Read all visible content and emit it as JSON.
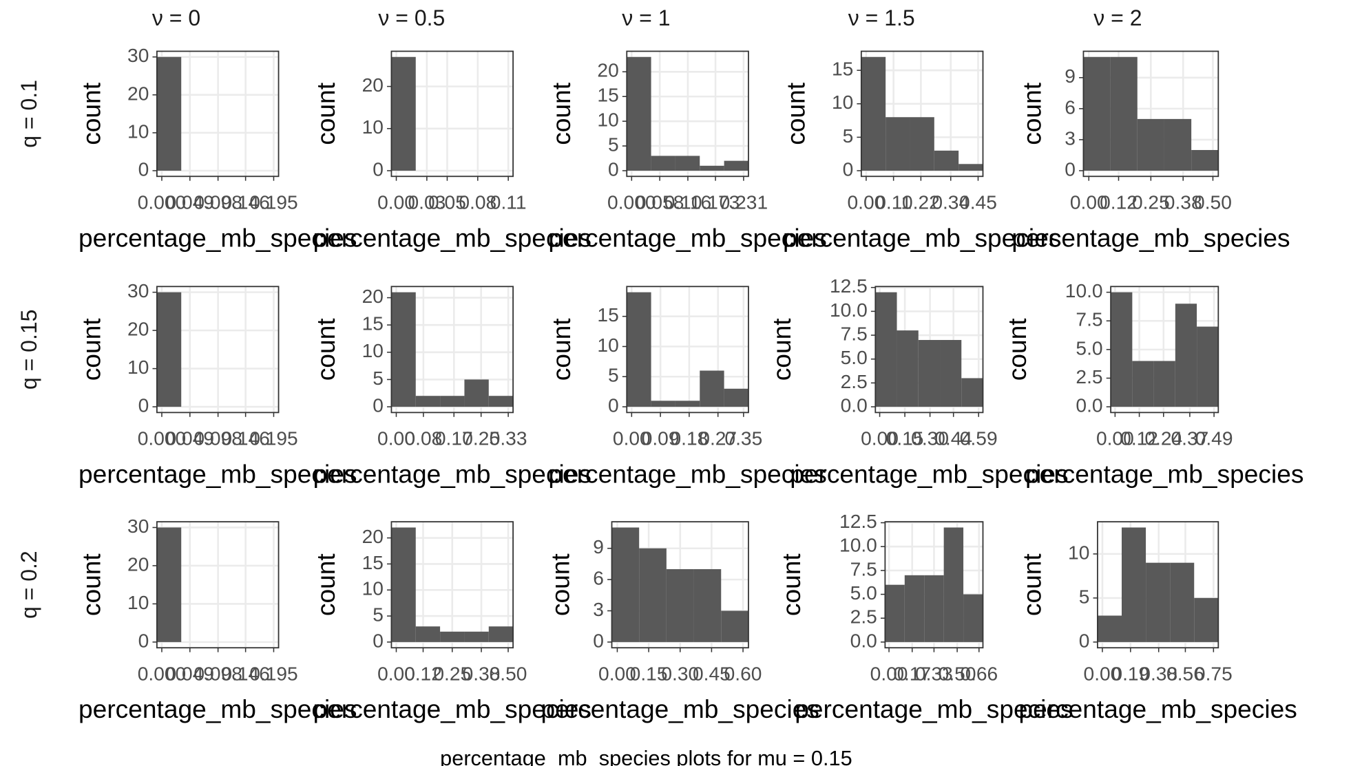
{
  "column_labels": [
    "ν = 0",
    "ν = 0.5",
    "ν = 1",
    "ν = 1.5",
    "ν = 2"
  ],
  "row_labels": [
    "q =  0.1",
    "q =  0.15",
    "q =  0.2"
  ],
  "caption": "percentage_mb_species plots for mu = 0.15",
  "chart_data": [
    {
      "type": "histogram",
      "x_label": "percentage_mb_species",
      "y_label": "count",
      "color": "#595959",
      "grid": true,
      "bins": [
        -0.0085,
        0.0339,
        0.0763,
        0.1187,
        0.1611,
        0.2035
      ],
      "values": [
        30,
        0,
        0,
        0,
        0
      ],
      "xlim": [
        -0.0085,
        0.2035
      ],
      "xticks": [
        {
          "value": 0,
          "label": "0.000"
        },
        0.049,
        0.098,
        0.146,
        0.195
      ],
      "ylim": [
        -1.5,
        31.5
      ],
      "yticks": [
        0,
        10,
        20,
        30
      ]
    },
    {
      "type": "histogram",
      "x_label": "percentage_mb_species",
      "y_label": "count",
      "color": "#595959",
      "grid": true,
      "bins": [
        -0.0048,
        0.0191,
        0.043,
        0.0669,
        0.0908,
        0.1147
      ],
      "values": [
        27,
        0,
        0,
        0,
        0
      ],
      "xlim": [
        -0.0048,
        0.1147
      ],
      "xticks": [
        {
          "value": 0,
          "label": "0.00"
        },
        0.03,
        0.05,
        0.08,
        0.11
      ],
      "ylim": [
        -1.35,
        28.35
      ],
      "yticks": [
        0,
        10,
        20
      ]
    },
    {
      "type": "histogram",
      "x_label": "percentage_mb_species",
      "y_label": "count",
      "color": "#595959",
      "grid": true,
      "bins": [
        -0.01,
        0.0402,
        0.0904,
        0.1406,
        0.1908,
        0.241
      ],
      "values": [
        23,
        3,
        3,
        1,
        2
      ],
      "xlim": [
        -0.01,
        0.241
      ],
      "xticks": [
        {
          "value": 0,
          "label": "0.000"
        },
        0.058,
        0.116,
        0.173,
        0.231
      ],
      "ylim": [
        -1.15,
        24.15
      ],
      "yticks": [
        0,
        5,
        10,
        15,
        20
      ]
    },
    {
      "type": "histogram",
      "x_label": "percentage_mb_species",
      "y_label": "count",
      "color": "#595959",
      "grid": true,
      "bins": [
        -0.0196,
        0.0782,
        0.176,
        0.2738,
        0.3716,
        0.4694
      ],
      "values": [
        17,
        8,
        8,
        3,
        1
      ],
      "xlim": [
        -0.0196,
        0.4694
      ],
      "xticks": [
        {
          "value": 0,
          "label": "0.00"
        },
        0.11,
        0.22,
        0.34,
        0.45
      ],
      "ylim": [
        -0.85,
        17.85
      ],
      "yticks": [
        0,
        5,
        10,
        15
      ]
    },
    {
      "type": "histogram",
      "x_label": "percentage_mb_species",
      "y_label": "count",
      "color": "#595959",
      "grid": true,
      "bins": [
        -0.0217,
        0.087,
        0.1957,
        0.3044,
        0.4131,
        0.5218
      ],
      "values": [
        11,
        11,
        5,
        5,
        2
      ],
      "xlim": [
        -0.0217,
        0.5218
      ],
      "xticks": [
        {
          "value": 0,
          "label": "0.00"
        },
        0.12,
        0.25,
        0.38,
        {
          "value": 0.5,
          "label": "0.50"
        }
      ],
      "ylim": [
        -0.55,
        11.55
      ],
      "yticks": [
        0,
        3,
        6,
        9
      ]
    },
    {
      "type": "histogram",
      "x_label": "percentage_mb_species",
      "y_label": "count",
      "color": "#595959",
      "grid": true,
      "bins": [
        -0.0085,
        0.0339,
        0.0763,
        0.1187,
        0.1611,
        0.2035
      ],
      "values": [
        30,
        0,
        0,
        0,
        0
      ],
      "xlim": [
        -0.0085,
        0.2035
      ],
      "xticks": [
        {
          "value": 0,
          "label": "0.000"
        },
        0.049,
        0.098,
        0.146,
        0.195
      ],
      "ylim": [
        -1.5,
        31.5
      ],
      "yticks": [
        0,
        10,
        20,
        30
      ]
    },
    {
      "type": "histogram",
      "x_label": "percentage_mb_species",
      "y_label": "count",
      "color": "#595959",
      "grid": true,
      "bins": [
        -0.0143,
        0.0574,
        0.1291,
        0.2008,
        0.2725,
        0.3442
      ],
      "values": [
        21,
        2,
        2,
        5,
        2
      ],
      "xlim": [
        -0.0143,
        0.3442
      ],
      "xticks": [
        {
          "value": 0,
          "label": "0.00"
        },
        0.08,
        0.17,
        0.25,
        0.33
      ],
      "ylim": [
        -1.05,
        22.05
      ],
      "yticks": [
        0,
        5,
        10,
        15,
        20
      ]
    },
    {
      "type": "histogram",
      "x_label": "percentage_mb_species",
      "y_label": "count",
      "color": "#595959",
      "grid": true,
      "bins": [
        -0.0152,
        0.0609,
        0.137,
        0.2131,
        0.2892,
        0.3653
      ],
      "values": [
        19,
        1,
        1,
        6,
        3
      ],
      "xlim": [
        -0.0152,
        0.3653
      ],
      "xticks": [
        {
          "value": 0,
          "label": "0.00"
        },
        0.09,
        0.18,
        0.27,
        0.35
      ],
      "ylim": [
        -0.95,
        19.95
      ],
      "yticks": [
        0,
        5,
        10,
        15
      ]
    },
    {
      "type": "histogram",
      "x_label": "percentage_mb_species",
      "y_label": "count",
      "color": "#595959",
      "grid": true,
      "bins": [
        -0.0257,
        0.1026,
        0.2309,
        0.3592,
        0.4875,
        0.6158
      ],
      "values": [
        12,
        8,
        7,
        7,
        3
      ],
      "xlim": [
        -0.0257,
        0.6158
      ],
      "xticks": [
        {
          "value": 0,
          "label": "0.00"
        },
        0.15,
        {
          "value": 0.3,
          "label": "0.30"
        },
        0.44,
        0.59
      ],
      "ylim": [
        -0.6,
        12.6
      ],
      "yticks": [
        {
          "value": 0,
          "label": "0.0"
        },
        2.5,
        {
          "value": 5,
          "label": "5.0"
        },
        7.5,
        {
          "value": 10,
          "label": "10.0"
        },
        12.5
      ]
    },
    {
      "type": "histogram",
      "x_label": "percentage_mb_species",
      "y_label": "count",
      "color": "#595959",
      "grid": true,
      "bins": [
        -0.0213,
        0.0852,
        0.1917,
        0.2982,
        0.4047,
        0.5112
      ],
      "values": [
        10,
        4,
        4,
        9,
        7
      ],
      "xlim": [
        -0.0213,
        0.5112
      ],
      "xticks": [
        {
          "value": 0,
          "label": "0.00"
        },
        0.12,
        0.24,
        0.37,
        0.49
      ],
      "ylim": [
        -0.5,
        10.5
      ],
      "yticks": [
        {
          "value": 0,
          "label": "0.0"
        },
        2.5,
        {
          "value": 5,
          "label": "5.0"
        },
        7.5,
        {
          "value": 10,
          "label": "10.0"
        }
      ]
    },
    {
      "type": "histogram",
      "x_label": "percentage_mb_species",
      "y_label": "count",
      "color": "#595959",
      "grid": true,
      "bins": [
        -0.0085,
        0.0339,
        0.0763,
        0.1187,
        0.1611,
        0.2035
      ],
      "values": [
        30,
        0,
        0,
        0,
        0
      ],
      "xlim": [
        -0.0085,
        0.2035
      ],
      "xticks": [
        {
          "value": 0,
          "label": "0.000"
        },
        0.049,
        0.098,
        0.146,
        0.195
      ],
      "ylim": [
        -1.5,
        31.5
      ],
      "yticks": [
        0,
        10,
        20,
        30
      ]
    },
    {
      "type": "histogram",
      "x_label": "percentage_mb_species",
      "y_label": "count",
      "color": "#595959",
      "grid": true,
      "bins": [
        -0.0217,
        0.087,
        0.1957,
        0.3044,
        0.4131,
        0.5218
      ],
      "values": [
        22,
        3,
        2,
        2,
        3
      ],
      "xlim": [
        -0.0217,
        0.5218
      ],
      "xticks": [
        {
          "value": 0,
          "label": "0.00"
        },
        0.12,
        0.25,
        0.38,
        {
          "value": 0.5,
          "label": "0.50"
        }
      ],
      "ylim": [
        -1.1,
        23.1
      ],
      "yticks": [
        0,
        5,
        10,
        15,
        20
      ]
    },
    {
      "type": "histogram",
      "x_label": "percentage_mb_species",
      "y_label": "count",
      "color": "#595959",
      "grid": true,
      "bins": [
        -0.0261,
        0.1043,
        0.2347,
        0.3651,
        0.4955,
        0.6259
      ],
      "values": [
        11,
        9,
        7,
        7,
        3
      ],
      "xlim": [
        -0.0261,
        0.6259
      ],
      "xticks": [
        {
          "value": 0,
          "label": "0.00"
        },
        0.15,
        {
          "value": 0.3,
          "label": "0.30"
        },
        0.45,
        {
          "value": 0.6,
          "label": "0.60"
        }
      ],
      "ylim": [
        -0.55,
        11.55
      ],
      "yticks": [
        0,
        3,
        6,
        9
      ]
    },
    {
      "type": "histogram",
      "x_label": "percentage_mb_species",
      "y_label": "count",
      "color": "#595959",
      "grid": true,
      "bins": [
        -0.0287,
        0.1148,
        0.2583,
        0.4018,
        0.5453,
        0.6888
      ],
      "values": [
        6,
        7,
        7,
        12,
        5
      ],
      "xlim": [
        -0.0287,
        0.6888
      ],
      "xticks": [
        {
          "value": 0,
          "label": "0.00"
        },
        0.17,
        0.33,
        {
          "value": 0.5,
          "label": "0.50"
        },
        0.66
      ],
      "ylim": [
        -0.6,
        12.6
      ],
      "yticks": [
        {
          "value": 0,
          "label": "0.0"
        },
        2.5,
        {
          "value": 5,
          "label": "5.0"
        },
        7.5,
        {
          "value": 10,
          "label": "10.0"
        },
        12.5
      ]
    },
    {
      "type": "histogram",
      "x_label": "percentage_mb_species",
      "y_label": "count",
      "color": "#595959",
      "grid": true,
      "bins": [
        -0.0326,
        0.1304,
        0.2934,
        0.4564,
        0.6194,
        0.7824
      ],
      "values": [
        3,
        13,
        9,
        9,
        5
      ],
      "xlim": [
        -0.0326,
        0.7824
      ],
      "xticks": [
        {
          "value": 0,
          "label": "0.00"
        },
        0.19,
        0.38,
        0.56,
        0.75
      ],
      "ylim": [
        -0.65,
        13.65
      ],
      "yticks": [
        0,
        5,
        10
      ]
    }
  ]
}
